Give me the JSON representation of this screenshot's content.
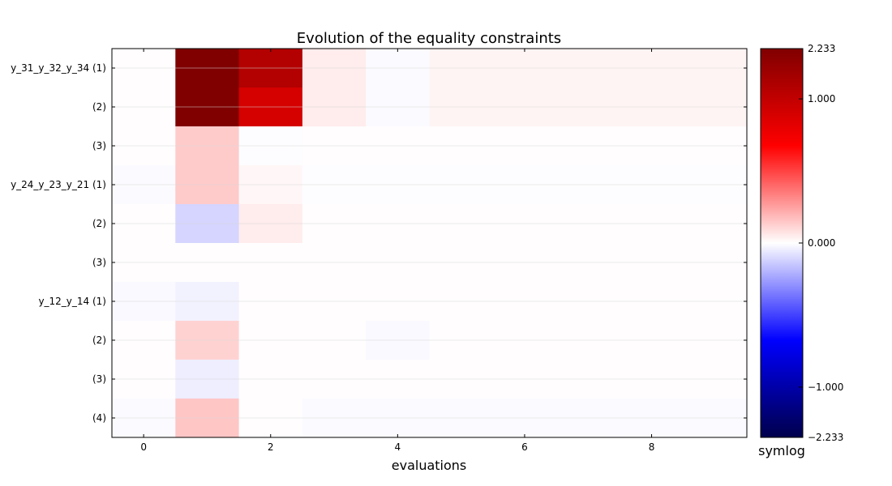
{
  "chart_data": {
    "type": "heatmap",
    "title": "Evolution of the equality constraints",
    "xlabel": "evaluations",
    "ylabel": "",
    "x": [
      0,
      1,
      2,
      3,
      4,
      5,
      6,
      7,
      8,
      9
    ],
    "xticks": [
      0,
      2,
      4,
      6,
      8
    ],
    "xlim": [
      -0.5,
      9.5
    ],
    "rows": [
      {
        "label": "y_31_y_32_y_34 (1)",
        "values": [
          0.005,
          2.233,
          1.2,
          0.05,
          -0.01,
          0.03,
          0.03,
          0.03,
          0.03,
          0.03
        ]
      },
      {
        "label": "(2)",
        "values": [
          0.005,
          2.233,
          0.9,
          0.05,
          -0.01,
          0.03,
          0.03,
          0.03,
          0.03,
          0.03
        ]
      },
      {
        "label": "(3)",
        "values": [
          0.005,
          0.14,
          -0.005,
          0.005,
          0.005,
          0.005,
          0.005,
          0.005,
          0.005,
          0.005
        ]
      },
      {
        "label": "y_24_y_23_y_21 (1)",
        "values": [
          -0.01,
          0.14,
          0.02,
          -0.005,
          -0.005,
          -0.005,
          -0.005,
          -0.005,
          -0.005,
          -0.005
        ]
      },
      {
        "label": "(2)",
        "values": [
          0.005,
          -0.11,
          0.05,
          0.005,
          0.005,
          0.005,
          0.005,
          0.005,
          0.005,
          0.005
        ]
      },
      {
        "label": "(3)",
        "values": [
          0.005,
          0.005,
          0.005,
          0.005,
          0.005,
          0.005,
          0.005,
          0.005,
          0.005,
          0.005
        ]
      },
      {
        "label": "y_12_y_14 (1)",
        "values": [
          -0.015,
          -0.035,
          0.005,
          0.005,
          0.005,
          0.005,
          0.005,
          0.005,
          0.005,
          0.005
        ]
      },
      {
        "label": "(2)",
        "values": [
          0.005,
          0.12,
          0.005,
          0.005,
          -0.015,
          0.005,
          0.005,
          0.005,
          0.005,
          0.005
        ]
      },
      {
        "label": "(3)",
        "values": [
          0.005,
          -0.045,
          0.005,
          0.005,
          0.005,
          0.005,
          0.005,
          0.005,
          0.005,
          0.005
        ]
      },
      {
        "label": "(4)",
        "values": [
          -0.01,
          0.15,
          0.005,
          -0.01,
          -0.01,
          -0.01,
          -0.01,
          -0.01,
          -0.01,
          -0.01
        ]
      }
    ],
    "colorbar": {
      "label": "symlog",
      "range": [
        -2.233,
        2.233
      ],
      "ticks": [
        2.233,
        1.0,
        0.0,
        -1.0,
        -2.233
      ],
      "tick_labels": [
        "2.233",
        "1.000",
        "0.000",
        "−1.000",
        "−2.233"
      ],
      "colormap": "seismic",
      "scale": "symlog",
      "linthresh": 1.0,
      "colors": [
        "#00004c",
        "#0000ff",
        "#ffffff",
        "#ff0000",
        "#800000"
      ]
    },
    "grid": "horizontal"
  }
}
